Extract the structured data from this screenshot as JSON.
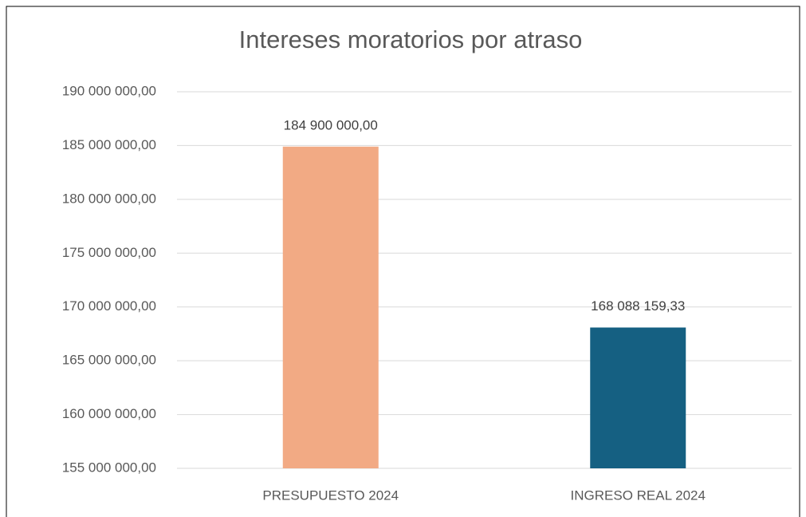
{
  "chart_data": {
    "type": "bar",
    "title": "Intereses moratorios por atraso",
    "categories": [
      "PRESUPUESTO 2024",
      "INGRESO REAL 2024"
    ],
    "values": [
      184900000,
      168088159.33
    ],
    "value_labels": [
      "184 900 000,00",
      "168 088 159,33"
    ],
    "colors": [
      "#f2aa84",
      "#156082"
    ],
    "ylim": [
      155000000,
      190000000
    ],
    "yticks": [
      {
        "value": 155000000,
        "label": "155 000 000,00"
      },
      {
        "value": 160000000,
        "label": "160 000 000,00"
      },
      {
        "value": 165000000,
        "label": "165 000 000,00"
      },
      {
        "value": 170000000,
        "label": "170 000 000,00"
      },
      {
        "value": 175000000,
        "label": "175 000 000,00"
      },
      {
        "value": 180000000,
        "label": "180 000 000,00"
      },
      {
        "value": 185000000,
        "label": "185 000 000,00"
      },
      {
        "value": 190000000,
        "label": "190 000 000,00"
      }
    ],
    "grid": true
  }
}
